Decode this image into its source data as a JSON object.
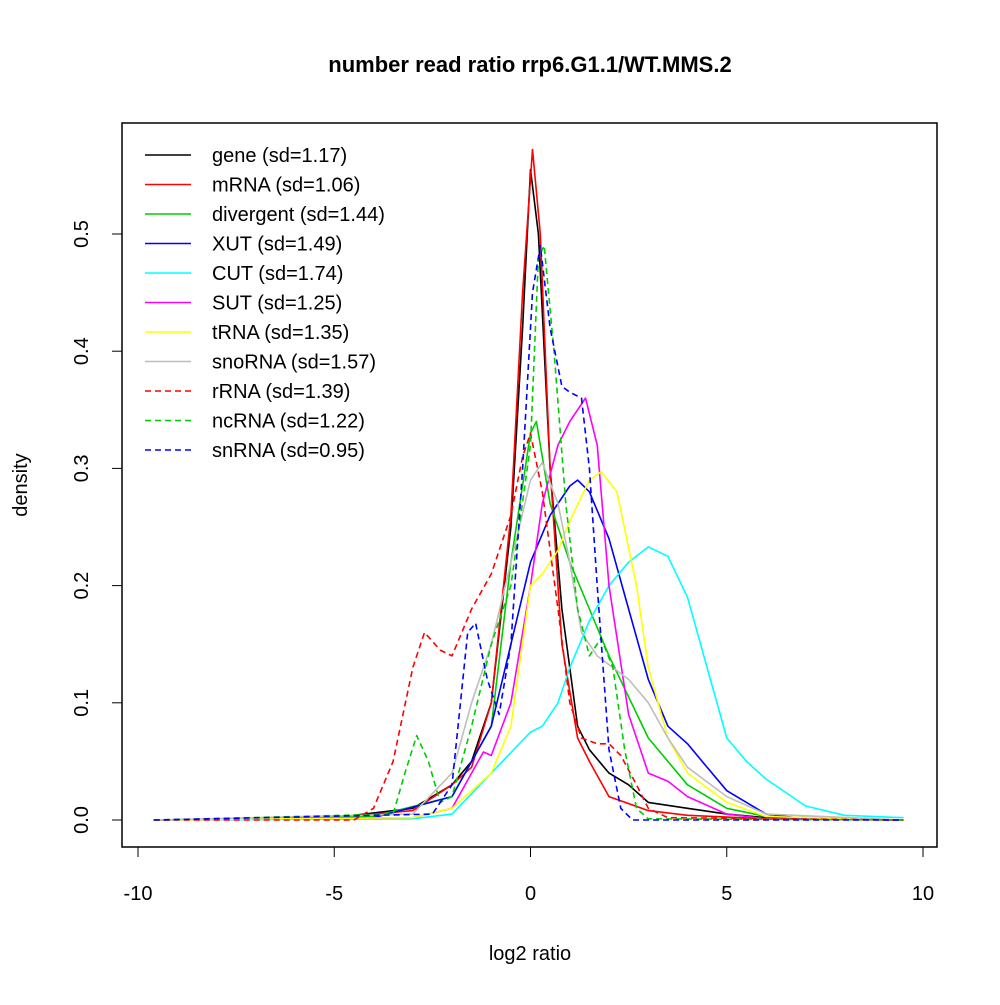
{
  "chart_data": {
    "type": "line",
    "title": "number read ratio rrp6.G1.1/WT.MMS.2",
    "xlabel": "log2 ratio",
    "ylabel": "density",
    "xlim": [
      -10,
      10
    ],
    "ylim": [
      0,
      0.58
    ],
    "xticks": [
      -10,
      -5,
      0,
      5,
      10
    ],
    "xtick_labels": [
      "-10",
      "-5",
      "0",
      "5",
      "10"
    ],
    "yticks": [
      0,
      0.1,
      0.2,
      0.3,
      0.4,
      0.5
    ],
    "ytick_labels": [
      "0.0",
      "0.1",
      "0.2",
      "0.3",
      "0.4",
      "0.5"
    ],
    "grid": false,
    "legend_position": "top-left",
    "series": [
      {
        "name": "gene (sd=1.17)",
        "color": "#000000",
        "dash": false,
        "points": [
          [
            -9.6,
            0
          ],
          [
            -5,
            0.002
          ],
          [
            -3,
            0.01
          ],
          [
            -2,
            0.03
          ],
          [
            -1.5,
            0.05
          ],
          [
            -1,
            0.1
          ],
          [
            -0.5,
            0.25
          ],
          [
            -0.2,
            0.42
          ],
          [
            0,
            0.555
          ],
          [
            0.2,
            0.5
          ],
          [
            0.5,
            0.3
          ],
          [
            0.8,
            0.18
          ],
          [
            1.2,
            0.08
          ],
          [
            1.5,
            0.06
          ],
          [
            2,
            0.04
          ],
          [
            2.5,
            0.03
          ],
          [
            3,
            0.015
          ],
          [
            4,
            0.01
          ],
          [
            5,
            0.005
          ],
          [
            6,
            0.002
          ],
          [
            9.5,
            0
          ]
        ]
      },
      {
        "name": "mRNA (sd=1.06)",
        "color": "#ff0000",
        "dash": false,
        "points": [
          [
            -9.6,
            0
          ],
          [
            -5,
            0.002
          ],
          [
            -3,
            0.008
          ],
          [
            -2,
            0.03
          ],
          [
            -1.5,
            0.045
          ],
          [
            -1,
            0.1
          ],
          [
            -0.5,
            0.26
          ],
          [
            -0.2,
            0.45
          ],
          [
            0.05,
            0.572
          ],
          [
            0.25,
            0.5
          ],
          [
            0.5,
            0.3
          ],
          [
            0.8,
            0.15
          ],
          [
            1.2,
            0.07
          ],
          [
            1.5,
            0.05
          ],
          [
            2,
            0.02
          ],
          [
            3,
            0.008
          ],
          [
            4,
            0.004
          ],
          [
            6,
            0.001
          ],
          [
            9.5,
            0
          ]
        ]
      },
      {
        "name": "divergent (sd=1.44)",
        "color": "#00cd00",
        "dash": false,
        "points": [
          [
            -9.6,
            0
          ],
          [
            -4,
            0.003
          ],
          [
            -2,
            0.02
          ],
          [
            -1,
            0.08
          ],
          [
            -0.5,
            0.22
          ],
          [
            0,
            0.33
          ],
          [
            0.15,
            0.34
          ],
          [
            0.5,
            0.27
          ],
          [
            1,
            0.22
          ],
          [
            1.5,
            0.18
          ],
          [
            2,
            0.14
          ],
          [
            3,
            0.07
          ],
          [
            4,
            0.03
          ],
          [
            5,
            0.01
          ],
          [
            6,
            0.003
          ],
          [
            9.5,
            0
          ]
        ]
      },
      {
        "name": "XUT (sd=1.49)",
        "color": "#0000ff",
        "dash": false,
        "points": [
          [
            -9.6,
            0
          ],
          [
            -4,
            0.002
          ],
          [
            -2,
            0.02
          ],
          [
            -1,
            0.08
          ],
          [
            -0.5,
            0.15
          ],
          [
            0,
            0.22
          ],
          [
            0.5,
            0.26
          ],
          [
            1,
            0.285
          ],
          [
            1.2,
            0.29
          ],
          [
            1.5,
            0.28
          ],
          [
            2,
            0.24
          ],
          [
            2.5,
            0.18
          ],
          [
            3,
            0.12
          ],
          [
            3.5,
            0.08
          ],
          [
            4,
            0.065
          ],
          [
            4.5,
            0.045
          ],
          [
            5,
            0.025
          ],
          [
            6,
            0.005
          ],
          [
            7,
            0.001
          ],
          [
            9.5,
            0
          ]
        ]
      },
      {
        "name": "CUT (sd=1.74)",
        "color": "#00ffff",
        "dash": false,
        "points": [
          [
            -9.6,
            0
          ],
          [
            -3,
            0.001
          ],
          [
            -2,
            0.005
          ],
          [
            -1,
            0.04
          ],
          [
            0,
            0.075
          ],
          [
            0.3,
            0.08
          ],
          [
            0.7,
            0.1
          ],
          [
            1,
            0.13
          ],
          [
            1.5,
            0.17
          ],
          [
            2,
            0.2
          ],
          [
            2.5,
            0.22
          ],
          [
            3,
            0.233
          ],
          [
            3.5,
            0.225
          ],
          [
            4,
            0.19
          ],
          [
            4.5,
            0.13
          ],
          [
            5,
            0.07
          ],
          [
            5.5,
            0.05
          ],
          [
            6,
            0.035
          ],
          [
            7,
            0.012
          ],
          [
            8,
            0.004
          ],
          [
            9.5,
            0.002
          ]
        ]
      },
      {
        "name": "SUT (sd=1.25)",
        "color": "#ff00ff",
        "dash": false,
        "points": [
          [
            -9.6,
            0
          ],
          [
            -3,
            0.002
          ],
          [
            -2,
            0.01
          ],
          [
            -1.5,
            0.04
          ],
          [
            -1.2,
            0.058
          ],
          [
            -1,
            0.055
          ],
          [
            -0.5,
            0.1
          ],
          [
            0,
            0.2
          ],
          [
            0.3,
            0.27
          ],
          [
            0.7,
            0.32
          ],
          [
            1,
            0.34
          ],
          [
            1.4,
            0.36
          ],
          [
            1.7,
            0.32
          ],
          [
            2,
            0.2
          ],
          [
            2.5,
            0.09
          ],
          [
            3,
            0.04
          ],
          [
            3.5,
            0.033
          ],
          [
            4,
            0.02
          ],
          [
            5,
            0.005
          ],
          [
            6,
            0.001
          ],
          [
            9.5,
            0
          ]
        ]
      },
      {
        "name": "tRNA (sd=1.35)",
        "color": "#ffff00",
        "dash": false,
        "points": [
          [
            -9.6,
            0
          ],
          [
            -3,
            0.002
          ],
          [
            -2,
            0.01
          ],
          [
            -1,
            0.04
          ],
          [
            -0.5,
            0.08
          ],
          [
            0,
            0.2
          ],
          [
            0.3,
            0.21
          ],
          [
            0.7,
            0.23
          ],
          [
            1,
            0.255
          ],
          [
            1.5,
            0.29
          ],
          [
            1.8,
            0.297
          ],
          [
            2.2,
            0.28
          ],
          [
            2.7,
            0.2
          ],
          [
            3,
            0.13
          ],
          [
            3.5,
            0.07
          ],
          [
            4,
            0.04
          ],
          [
            5,
            0.015
          ],
          [
            6,
            0.003
          ],
          [
            9.5,
            0
          ]
        ]
      },
      {
        "name": "snoRNA (sd=1.57)",
        "color": "#bebebe",
        "dash": false,
        "points": [
          [
            -9.6,
            0
          ],
          [
            -3,
            0.005
          ],
          [
            -2,
            0.04
          ],
          [
            -1.5,
            0.1
          ],
          [
            -1,
            0.15
          ],
          [
            -0.5,
            0.22
          ],
          [
            0,
            0.29
          ],
          [
            0.3,
            0.305
          ],
          [
            0.7,
            0.27
          ],
          [
            1,
            0.22
          ],
          [
            1.3,
            0.16
          ],
          [
            1.7,
            0.14
          ],
          [
            2.5,
            0.12
          ],
          [
            3,
            0.1
          ],
          [
            3.5,
            0.07
          ],
          [
            4,
            0.045
          ],
          [
            5,
            0.02
          ],
          [
            6,
            0.005
          ],
          [
            9.5,
            0
          ]
        ]
      },
      {
        "name": "rRNA (sd=1.39)",
        "color": "#ff0000",
        "dash": true,
        "points": [
          [
            -9.6,
            0
          ],
          [
            -4.5,
            0
          ],
          [
            -4,
            0.01
          ],
          [
            -3.5,
            0.05
          ],
          [
            -3,
            0.13
          ],
          [
            -2.7,
            0.16
          ],
          [
            -2.3,
            0.145
          ],
          [
            -2,
            0.14
          ],
          [
            -1.5,
            0.18
          ],
          [
            -1,
            0.21
          ],
          [
            -0.5,
            0.26
          ],
          [
            -0.2,
            0.31
          ],
          [
            0,
            0.33
          ],
          [
            0.3,
            0.28
          ],
          [
            0.7,
            0.18
          ],
          [
            1,
            0.1
          ],
          [
            1.3,
            0.07
          ],
          [
            1.7,
            0.065
          ],
          [
            2,
            0.065
          ],
          [
            2.3,
            0.055
          ],
          [
            2.7,
            0.03
          ],
          [
            3,
            0.01
          ],
          [
            3.5,
            0.002
          ],
          [
            9.5,
            0
          ]
        ]
      },
      {
        "name": "ncRNA (sd=1.22)",
        "color": "#00cd00",
        "dash": true,
        "points": [
          [
            -9.6,
            0
          ],
          [
            -3.5,
            0.005
          ],
          [
            -3.2,
            0.04
          ],
          [
            -2.9,
            0.072
          ],
          [
            -2.6,
            0.05
          ],
          [
            -2.3,
            0.015
          ],
          [
            -2,
            0.02
          ],
          [
            -1.5,
            0.08
          ],
          [
            -1,
            0.15
          ],
          [
            -0.5,
            0.2
          ],
          [
            0,
            0.32
          ],
          [
            0.2,
            0.48
          ],
          [
            0.35,
            0.49
          ],
          [
            0.6,
            0.4
          ],
          [
            0.9,
            0.27
          ],
          [
            1.2,
            0.18
          ],
          [
            1.5,
            0.14
          ],
          [
            1.8,
            0.155
          ],
          [
            2.1,
            0.13
          ],
          [
            2.4,
            0.06
          ],
          [
            2.7,
            0.01
          ],
          [
            3,
            0.001
          ],
          [
            9.5,
            0
          ]
        ]
      },
      {
        "name": "snRNA (sd=0.95)",
        "color": "#0000ff",
        "dash": true,
        "points": [
          [
            -9.6,
            0
          ],
          [
            -2.5,
            0.005
          ],
          [
            -2,
            0.03
          ],
          [
            -1.6,
            0.16
          ],
          [
            -1.4,
            0.168
          ],
          [
            -1.1,
            0.12
          ],
          [
            -0.8,
            0.09
          ],
          [
            -0.5,
            0.15
          ],
          [
            -0.2,
            0.3
          ],
          [
            0.05,
            0.45
          ],
          [
            0.25,
            0.49
          ],
          [
            0.5,
            0.42
          ],
          [
            0.8,
            0.37
          ],
          [
            1,
            0.365
          ],
          [
            1.3,
            0.36
          ],
          [
            1.5,
            0.3
          ],
          [
            1.7,
            0.2
          ],
          [
            2,
            0.06
          ],
          [
            2.3,
            0.01
          ],
          [
            2.6,
            0
          ],
          [
            9.5,
            0
          ]
        ]
      }
    ]
  }
}
